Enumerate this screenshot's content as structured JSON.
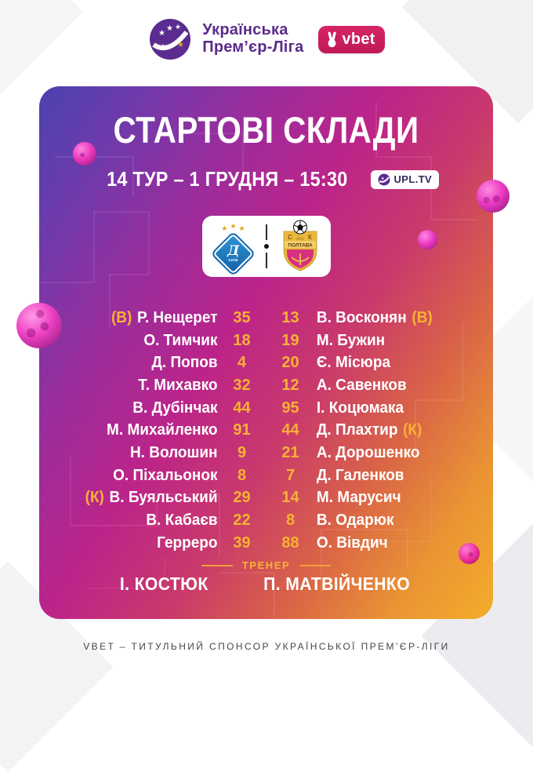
{
  "header": {
    "league_name_line1": "Українська",
    "league_name_line2": "Прем’єр-Ліга",
    "vbet_label": "vbet"
  },
  "card": {
    "title": "СТАРТОВІ СКЛАДИ",
    "match_info": "14 ТУР – 1 ГРУДНЯ – 15:30",
    "upltv_label": "UPL.TV",
    "teams": {
      "home_letter": "Д",
      "home_city": "КИЇВ",
      "home_stars": "★",
      "away_letters_left": "С",
      "away_letters_right": "К",
      "away_year": "2011",
      "away_name": "ПОЛТАВА"
    },
    "lineups": {
      "rows": [
        {
          "home_prefix": "(В)",
          "home_name": "Р. Нещерет",
          "home_num": "35",
          "away_num": "13",
          "away_name": "В. Восконян",
          "away_suffix": "(В)"
        },
        {
          "home_name": "О. Тимчик",
          "home_num": "18",
          "away_num": "19",
          "away_name": "М. Бужин"
        },
        {
          "home_name": "Д. Попов",
          "home_num": "4",
          "away_num": "20",
          "away_name": "Є. Місюра"
        },
        {
          "home_name": "Т. Михавко",
          "home_num": "32",
          "away_num": "12",
          "away_name": "А. Савенков"
        },
        {
          "home_name": "В. Дубінчак",
          "home_num": "44",
          "away_num": "95",
          "away_name": "І. Коцюмака"
        },
        {
          "home_name": "М. Михайленко",
          "home_num": "91",
          "away_num": "44",
          "away_name": "Д. Плахтир",
          "away_suffix": "(К)"
        },
        {
          "home_name": "Н. Волошин",
          "home_num": "9",
          "away_num": "21",
          "away_name": "А. Дорошенко"
        },
        {
          "home_name": "О. Піхальонок",
          "home_num": "8",
          "away_num": "7",
          "away_name": "Д. Галенков"
        },
        {
          "home_prefix": "(К)",
          "home_name": "В. Буяльський",
          "home_num": "29",
          "away_num": "14",
          "away_name": "М. Марусич"
        },
        {
          "home_name": "В. Кабаєв",
          "home_num": "22",
          "away_num": "8",
          "away_name": "В. Одарюк"
        },
        {
          "home_name": "Герреро",
          "home_num": "39",
          "away_num": "88",
          "away_name": "О. Вівдич"
        }
      ]
    },
    "coach": {
      "label": "ТРЕНЕР",
      "home": "І. КОСТЮК",
      "away": "П. МАТВІЙЧЕНКО"
    }
  },
  "footer": {
    "text": "VBET – ТИТУЛЬНИЙ СПОНСОР УКРАЇНСЬКОЇ ПРЕМ’ЄР-ЛІГИ"
  },
  "colors": {
    "accent_yellow": "#F8B133",
    "card_purple": "#4A43B0",
    "card_magenta": "#BC2489",
    "card_orange": "#F3AD2A",
    "upl_purple": "#5B2B8C",
    "vbet_pink": "#CC1F5E",
    "dynamo_blue": "#1C74B8",
    "poltava_gold": "#E9B83D",
    "poltava_pink": "#D6317F"
  }
}
